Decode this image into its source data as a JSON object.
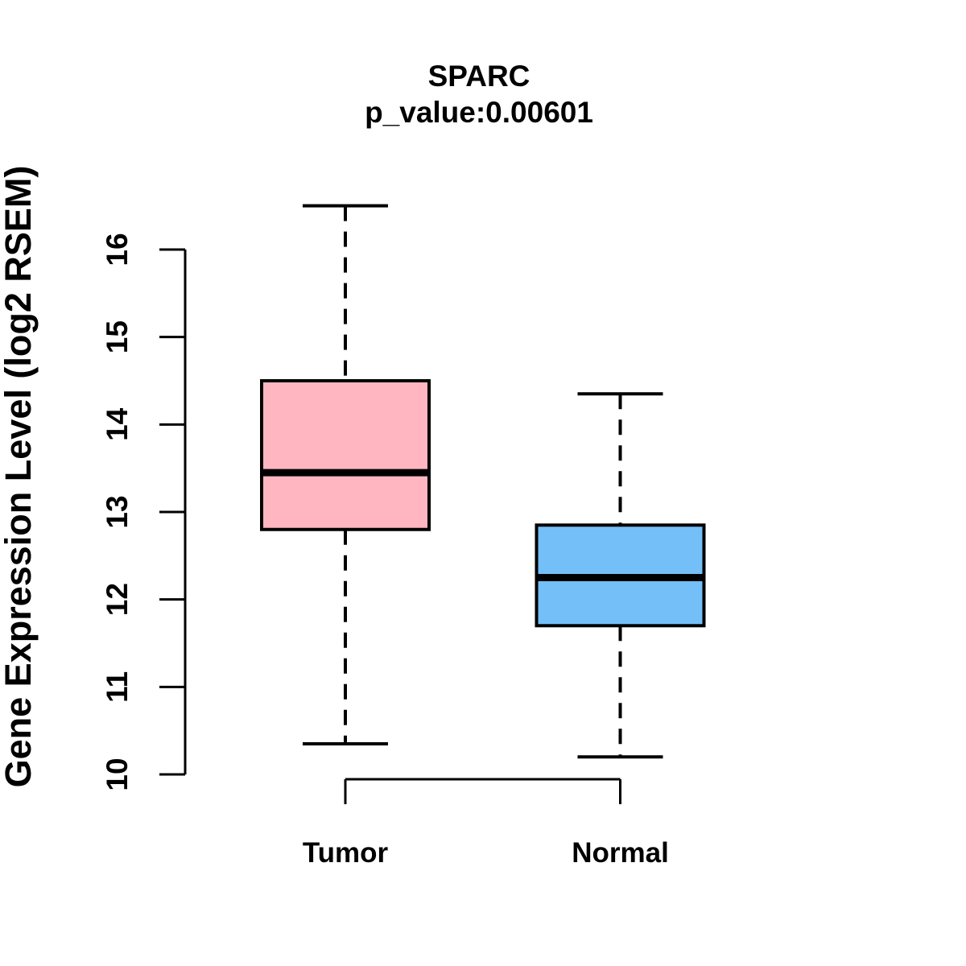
{
  "chart_data": {
    "type": "boxplot",
    "title": "SPARC",
    "subtitle": "p_value:0.00601",
    "ylabel": "Gene Expression Level (log2 RSEM)",
    "xlabel": "",
    "ylim": [
      10,
      16
    ],
    "yticks": [
      10,
      11,
      12,
      13,
      14,
      15,
      16
    ],
    "grid": "off",
    "legend": "none",
    "categories": [
      "Tumor",
      "Normal"
    ],
    "series": [
      {
        "name": "Tumor",
        "fill_color": "#FFB6C1",
        "whisker_low": 10.35,
        "q1": 12.8,
        "median": 13.45,
        "q3": 14.5,
        "whisker_high": 16.5
      },
      {
        "name": "Normal",
        "fill_color": "#74BFF7",
        "whisker_low": 10.2,
        "q1": 11.7,
        "median": 12.25,
        "q3": 12.85,
        "whisker_high": 14.35
      }
    ],
    "colors": {
      "stroke": "#000000",
      "background": "#FFFFFF"
    }
  }
}
